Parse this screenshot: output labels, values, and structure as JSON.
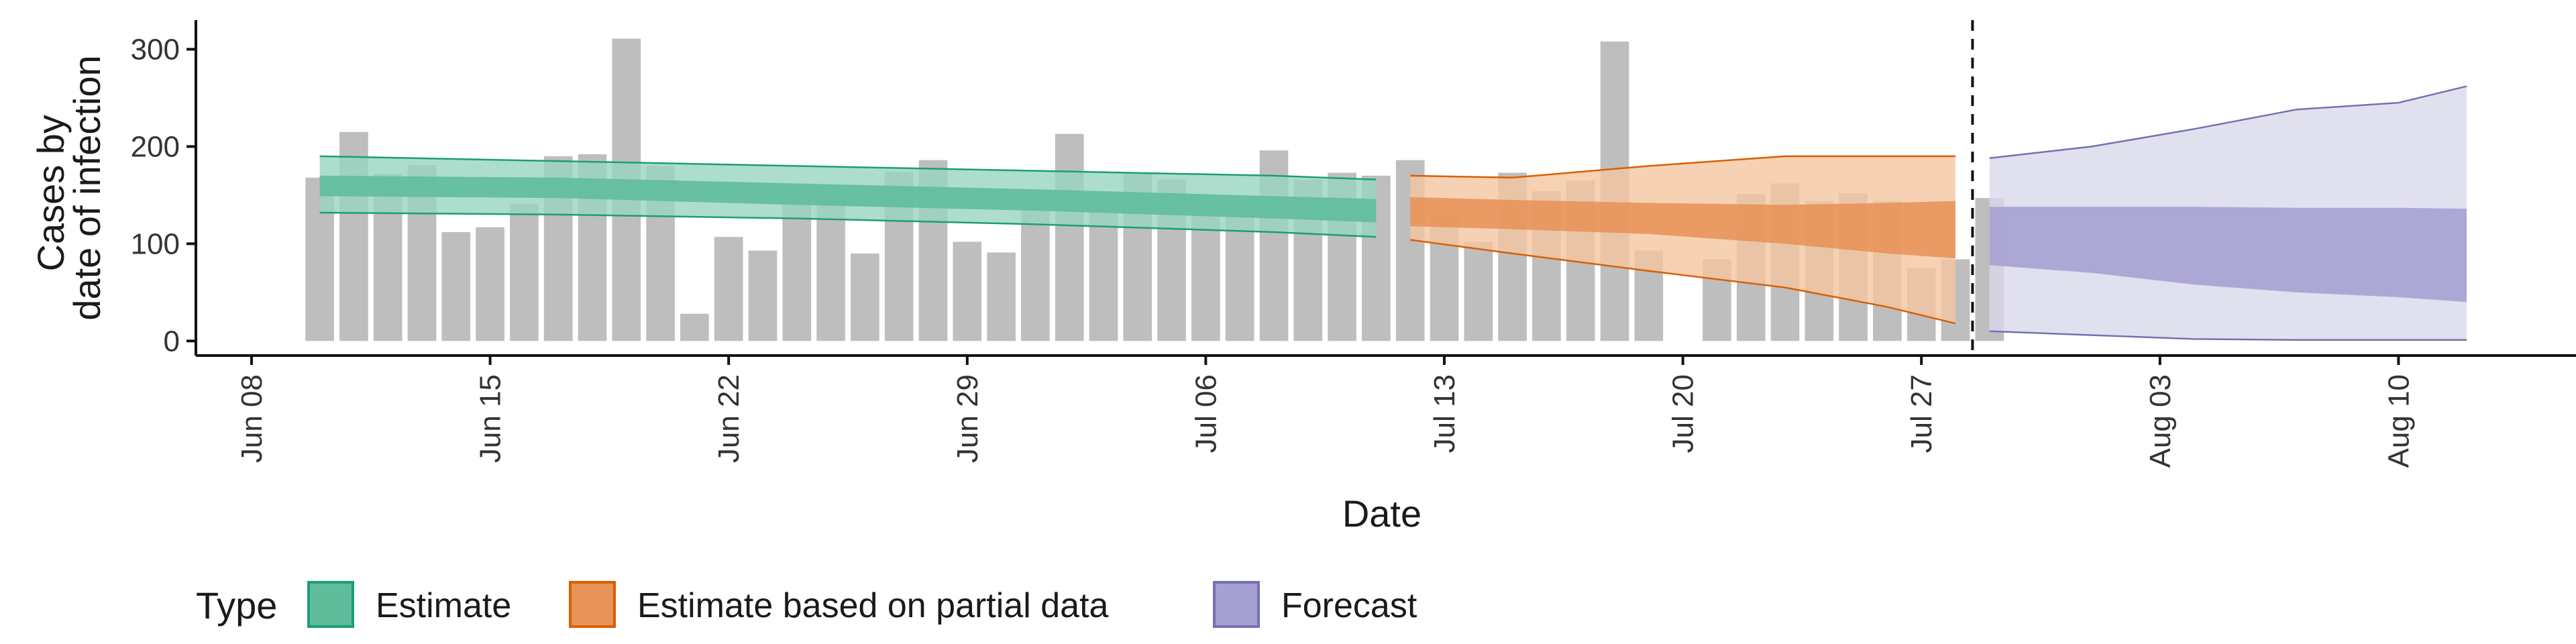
{
  "chart_data": {
    "type": "bar+ribbon",
    "xlabel": "Date",
    "ylabel_lines": [
      "Cases by",
      "date of infection"
    ],
    "ylim": [
      -15,
      330
    ],
    "yticks": [
      0,
      100,
      200,
      300
    ],
    "x_start": "Jun 07",
    "x_end": "Aug 14",
    "xticks": [
      {
        "label": "Jun 08",
        "day": 1
      },
      {
        "label": "Jun 15",
        "day": 8
      },
      {
        "label": "Jun 22",
        "day": 15
      },
      {
        "label": "Jun 29",
        "day": 22
      },
      {
        "label": "Jul 06",
        "day": 29
      },
      {
        "label": "Jul 13",
        "day": 36
      },
      {
        "label": "Jul 20",
        "day": 43
      },
      {
        "label": "Jul 27",
        "day": 50
      },
      {
        "label": "Aug 03",
        "day": 57
      },
      {
        "label": "Aug 10",
        "day": 64
      }
    ],
    "bars": {
      "start_day": 3,
      "color": "#bebebe",
      "values": [
        168,
        215,
        172,
        181,
        112,
        117,
        141,
        190,
        192,
        311,
        180,
        28,
        107,
        93,
        151,
        152,
        90,
        174,
        186,
        102,
        91,
        152,
        213,
        143,
        173,
        166,
        131,
        133,
        196,
        166,
        173,
        170,
        186,
        128,
        102,
        173,
        154,
        165,
        308,
        93,
        null,
        84,
        151,
        162,
        144,
        152,
        144,
        75,
        84,
        147
      ]
    },
    "dashed_line_day": 51.5,
    "series": [
      {
        "name": "Estimate",
        "fill_outer": "#99d5c1",
        "fill_inner": "#5fbd9c",
        "line": "#1b9e77",
        "days": [
          3,
          10,
          17,
          24,
          31,
          34
        ],
        "outer_low": [
          132,
          130,
          126,
          120,
          112,
          107
        ],
        "outer_high": [
          190,
          185,
          180,
          175,
          170,
          166
        ],
        "inner_low": [
          149,
          147,
          140,
          134,
          126,
          122
        ],
        "inner_high": [
          170,
          168,
          162,
          156,
          149,
          146
        ]
      },
      {
        "name": "Estimate based on partial data",
        "fill_outer": "#f5c6a0",
        "fill_inner": "#e8935a",
        "line": "#d95f02",
        "days": [
          35,
          38,
          42,
          46,
          49,
          51
        ],
        "outer_low": [
          104,
          90,
          72,
          55,
          35,
          18
        ],
        "outer_high": [
          170,
          168,
          180,
          190,
          190,
          190
        ],
        "inner_low": [
          118,
          115,
          110,
          100,
          90,
          85
        ],
        "inner_high": [
          148,
          145,
          142,
          140,
          142,
          144
        ]
      },
      {
        "name": "Forecast",
        "fill_outer": "#d9d8ea",
        "fill_inner": "#a6a1d2",
        "line": "#7570b3",
        "days": [
          52,
          55,
          58,
          61,
          64,
          66
        ],
        "outer_low": [
          10,
          6,
          2,
          1,
          1,
          1
        ],
        "outer_high": [
          188,
          200,
          218,
          238,
          245,
          262
        ],
        "inner_low": [
          78,
          70,
          58,
          50,
          45,
          40
        ],
        "inner_high": [
          138,
          138,
          138,
          137,
          137,
          136
        ]
      }
    ],
    "legend": {
      "title": "Type",
      "placement": "bottom-left",
      "items": [
        "Estimate",
        "Estimate based on partial data",
        "Forecast"
      ]
    }
  }
}
